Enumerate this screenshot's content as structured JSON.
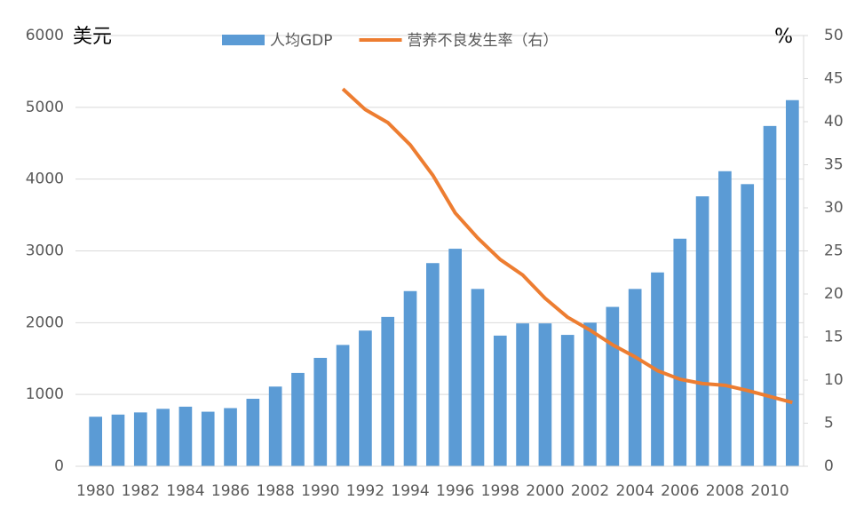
{
  "chart_data": {
    "type": "bar",
    "categories": [
      "1980",
      null,
      "1982",
      null,
      "1984",
      null,
      "1986",
      null,
      "1988",
      null,
      "1990",
      null,
      "1992",
      null,
      "1994",
      null,
      "1996",
      null,
      "1998",
      null,
      "2000",
      null,
      "2002",
      null,
      "2004",
      null,
      "2006",
      null,
      "2008",
      null,
      "2010",
      null
    ],
    "series": [
      {
        "name": "人均GDP",
        "type": "bar",
        "color": "#5b9bd5",
        "values": [
          690,
          720,
          750,
          800,
          830,
          760,
          810,
          940,
          1110,
          1300,
          1510,
          1690,
          1890,
          2080,
          2440,
          2830,
          3030,
          2470,
          1820,
          1990,
          1990,
          1830,
          2000,
          2220,
          2470,
          2700,
          3170,
          3760,
          4110,
          3930,
          4740,
          5100
        ]
      },
      {
        "name": "营养不良发生率（右）",
        "type": "line",
        "axis": "y2",
        "color": "#ed7d31",
        "values": [
          null,
          null,
          null,
          null,
          null,
          null,
          null,
          null,
          null,
          null,
          null,
          43.8,
          41.4,
          39.9,
          37.3,
          33.8,
          29.4,
          26.5,
          24.0,
          22.2,
          19.5,
          17.3,
          15.8,
          14.1,
          12.7,
          11.1,
          10.1,
          9.6,
          9.4,
          8.8,
          8.1,
          7.4
        ]
      }
    ],
    "y_label": "美元",
    "y2_label": "%",
    "ylim": [
      0,
      6000
    ],
    "yticks": [
      0,
      1000,
      2000,
      3000,
      4000,
      5000,
      6000
    ],
    "y2lim": [
      0,
      50
    ],
    "y2ticks": [
      0,
      5,
      10,
      15,
      20,
      25,
      30,
      35,
      40,
      45,
      50
    ],
    "grid": true,
    "legend": "top"
  }
}
